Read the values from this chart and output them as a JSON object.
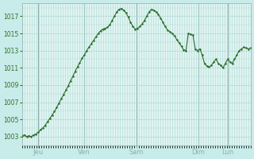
{
  "background_color": "#c8ece9",
  "plot_bg_color": "#dff4f1",
  "line_color": "#2d6e2d",
  "marker_color": "#2d6e2d",
  "grid_color": "#b0d8d4",
  "tick_label_color": "#2d6e2d",
  "axis_label_color": "#2d6e2d",
  "vline_color": "#8ab0ae",
  "ylim": [
    1002.0,
    1018.5
  ],
  "yticks": [
    1003,
    1005,
    1007,
    1009,
    1011,
    1013,
    1015,
    1017
  ],
  "day_labels": [
    "Jeu",
    "Ven",
    "Sam",
    "Dim",
    "Lun"
  ],
  "day_positions": [
    0.07,
    0.27,
    0.5,
    0.77,
    0.9
  ],
  "day_vline_positions": [
    0.07,
    0.27,
    0.5,
    0.77,
    0.9
  ],
  "y_data": [
    1003.1,
    1003.2,
    1003.0,
    1003.1,
    1003.0,
    1003.2,
    1003.3,
    1003.5,
    1003.8,
    1004.0,
    1004.3,
    1004.7,
    1005.1,
    1005.5,
    1005.9,
    1006.4,
    1006.9,
    1007.4,
    1007.9,
    1008.4,
    1008.9,
    1009.5,
    1010.0,
    1010.6,
    1011.1,
    1011.6,
    1012.1,
    1012.5,
    1013.0,
    1013.4,
    1013.8,
    1014.2,
    1014.6,
    1015.0,
    1015.3,
    1015.5,
    1015.6,
    1015.7,
    1016.0,
    1016.5,
    1017.0,
    1017.5,
    1017.8,
    1017.9,
    1017.7,
    1017.4,
    1016.9,
    1016.3,
    1015.8,
    1015.5,
    1015.6,
    1015.8,
    1016.1,
    1016.5,
    1017.0,
    1017.5,
    1017.8,
    1017.7,
    1017.5,
    1017.2,
    1016.8,
    1016.3,
    1015.8,
    1015.4,
    1015.2,
    1015.0,
    1014.7,
    1014.3,
    1013.9,
    1013.5,
    1013.1,
    1013.0,
    1015.0,
    1014.9,
    1014.8,
    1013.2,
    1013.0,
    1013.2,
    1012.5,
    1011.5,
    1011.2,
    1011.1,
    1011.3,
    1011.7,
    1012.0,
    1011.5,
    1011.3,
    1011.0,
    1011.5,
    1012.0,
    1011.7,
    1011.5,
    1012.0,
    1012.5,
    1013.0,
    1013.2,
    1013.4,
    1013.3,
    1013.2,
    1013.3
  ]
}
